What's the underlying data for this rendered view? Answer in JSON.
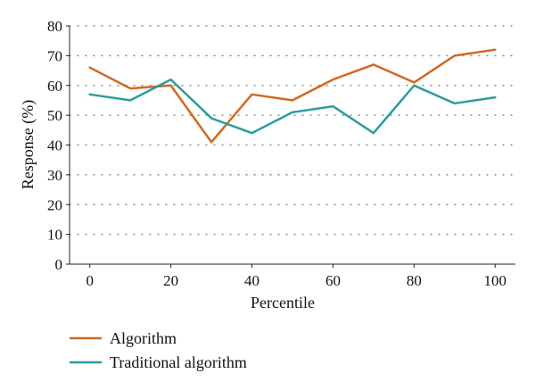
{
  "chart_data": {
    "type": "line",
    "title": "",
    "xlabel": "Percentile",
    "ylabel": "Response (%)",
    "x": [
      0,
      10,
      20,
      30,
      40,
      50,
      60,
      70,
      80,
      90,
      100
    ],
    "xticks": [
      0,
      20,
      40,
      60,
      80,
      100
    ],
    "yticks": [
      0,
      10,
      20,
      30,
      40,
      50,
      60,
      70,
      80
    ],
    "xlim": [
      -5,
      105
    ],
    "ylim": [
      0,
      80
    ],
    "grid": "horizontal-dotted",
    "legend_position": "bottom",
    "series": [
      {
        "name": "Algorithm",
        "color": "#D2691E",
        "values": [
          66,
          59,
          60,
          41,
          57,
          55,
          62,
          67,
          61,
          70,
          72
        ]
      },
      {
        "name": "Traditional algorithm",
        "color": "#2A9D9F",
        "values": [
          57,
          55,
          62,
          49,
          44,
          51,
          53,
          44,
          60,
          54,
          56
        ]
      }
    ]
  }
}
